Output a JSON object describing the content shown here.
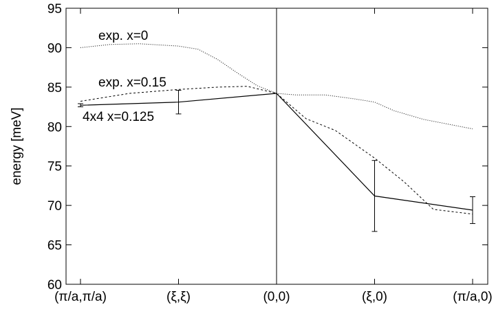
{
  "chart_data": {
    "type": "line",
    "title": "",
    "xlabel": "",
    "ylabel": "energy [meV]",
    "x_categories": [
      "(π/a,π/a)",
      "(ξ,ξ)",
      "(0,0)",
      "(ξ,0)",
      "(π/a,0)"
    ],
    "x_positions": [
      0,
      1,
      2,
      3,
      4
    ],
    "ylim": [
      60,
      95
    ],
    "yticks": [
      60,
      65,
      70,
      75,
      80,
      85,
      90,
      95
    ],
    "grid": false,
    "vertical_line_at": "(0,0)",
    "series": [
      {
        "name": "exp. x=0",
        "style": "dotted",
        "x": [
          0,
          0.3,
          0.6,
          1.0,
          1.2,
          1.4,
          1.6,
          1.8,
          2.0,
          2.2,
          2.5,
          2.8,
          3.0,
          3.2,
          3.5,
          4.0
        ],
        "y": [
          90.0,
          90.4,
          90.5,
          90.2,
          89.8,
          88.5,
          86.8,
          85.2,
          84.2,
          84.0,
          84.0,
          83.5,
          83.1,
          82.0,
          80.9,
          79.7
        ]
      },
      {
        "name": "exp. x=0.15",
        "style": "dashed",
        "x": [
          0,
          0.5,
          1.0,
          1.4,
          1.7,
          2.0,
          2.3,
          2.6,
          3.0,
          3.3,
          3.6,
          4.0
        ],
        "y": [
          83.2,
          84.2,
          84.7,
          85.0,
          85.1,
          84.2,
          81.0,
          79.5,
          76.0,
          73.0,
          69.5,
          68.9
        ]
      },
      {
        "name": "4x4 x=0.125",
        "style": "solid",
        "x": [
          0,
          1,
          2,
          3,
          4
        ],
        "y": [
          82.7,
          83.1,
          84.2,
          71.2,
          69.4
        ],
        "errors": [
          0.2,
          1.5,
          0.0,
          4.5,
          1.7
        ]
      }
    ],
    "annotations": [
      {
        "text": "exp. x=0",
        "series": "exp. x=0"
      },
      {
        "text": "exp. x=0.15",
        "series": "exp. x=0.15"
      },
      {
        "text": "4x4 x=0.125",
        "series": "4x4 x=0.125"
      }
    ]
  }
}
